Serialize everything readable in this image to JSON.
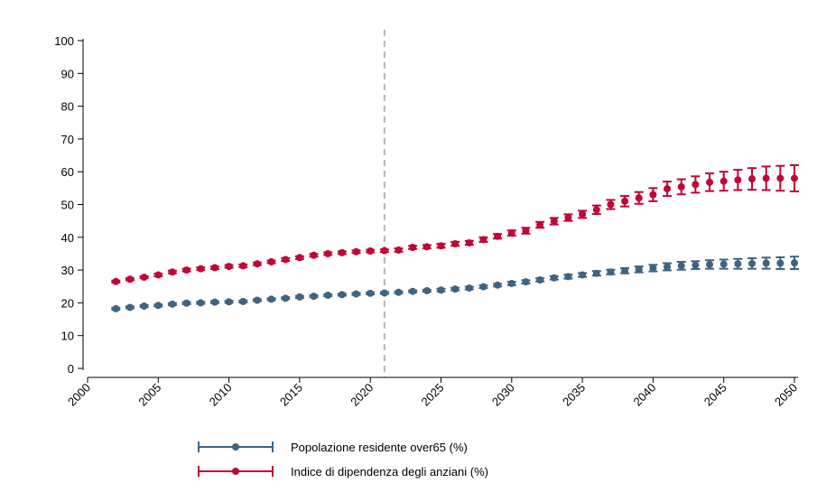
{
  "chart_data": {
    "type": "scatter",
    "x_range": [
      2000,
      2050
    ],
    "ylim": [
      0,
      100
    ],
    "y_ticks": [
      0,
      10,
      20,
      30,
      40,
      50,
      60,
      70,
      80,
      90,
      100
    ],
    "x_ticks": [
      2000,
      2005,
      2010,
      2015,
      2020,
      2025,
      2030,
      2035,
      2040,
      2045,
      2050
    ],
    "vertical_reference_line": 2021,
    "grid": false,
    "legend_position": "bottom",
    "x": [
      2002,
      2003,
      2004,
      2005,
      2006,
      2007,
      2008,
      2009,
      2010,
      2011,
      2012,
      2013,
      2014,
      2015,
      2016,
      2017,
      2018,
      2019,
      2020,
      2021,
      2022,
      2023,
      2024,
      2025,
      2026,
      2027,
      2028,
      2029,
      2030,
      2031,
      2032,
      2033,
      2034,
      2035,
      2036,
      2037,
      2038,
      2039,
      2040,
      2041,
      2042,
      2043,
      2044,
      2045,
      2046,
      2047,
      2048,
      2049,
      2050
    ],
    "series": [
      {
        "name": "Popolazione residente over65 (%)",
        "color": "#3e6383",
        "values": [
          18.2,
          18.6,
          19.0,
          19.2,
          19.6,
          19.9,
          20.0,
          20.2,
          20.3,
          20.4,
          20.8,
          21.1,
          21.4,
          21.8,
          22.0,
          22.3,
          22.5,
          22.7,
          22.9,
          23.0,
          23.2,
          23.5,
          23.7,
          23.9,
          24.2,
          24.5,
          24.9,
          25.4,
          25.9,
          26.4,
          27.0,
          27.6,
          28.0,
          28.5,
          29.0,
          29.4,
          29.8,
          30.2,
          30.6,
          31.0,
          31.3,
          31.5,
          31.7,
          31.8,
          31.9,
          32.0,
          32.1,
          32.1,
          32.2
        ],
        "error": [
          0.3,
          0.3,
          0.3,
          0.3,
          0.3,
          0.3,
          0.3,
          0.3,
          0.3,
          0.3,
          0.3,
          0.3,
          0.3,
          0.3,
          0.3,
          0.3,
          0.3,
          0.3,
          0.3,
          0.3,
          0.3,
          0.3,
          0.3,
          0.4,
          0.4,
          0.4,
          0.4,
          0.4,
          0.5,
          0.5,
          0.5,
          0.5,
          0.6,
          0.6,
          0.7,
          0.7,
          0.8,
          0.9,
          1.0,
          1.1,
          1.2,
          1.2,
          1.3,
          1.4,
          1.5,
          1.6,
          1.7,
          1.8,
          1.9
        ]
      },
      {
        "name": "Indice di dipendenza degli anziani (%)",
        "color": "#c10534",
        "values": [
          26.5,
          27.2,
          27.8,
          28.5,
          29.4,
          30.0,
          30.4,
          30.7,
          31.1,
          31.3,
          31.9,
          32.5,
          33.2,
          33.8,
          34.5,
          35.0,
          35.3,
          35.6,
          35.8,
          35.9,
          36.1,
          36.9,
          37.1,
          37.4,
          38.0,
          38.3,
          39.3,
          40.3,
          41.3,
          42.0,
          43.8,
          44.9,
          46.0,
          47.0,
          48.4,
          50.0,
          51.0,
          52.0,
          53.0,
          54.8,
          55.4,
          56.1,
          56.8,
          57.1,
          57.5,
          57.8,
          58.0,
          58.0,
          58.0
        ],
        "error": [
          0.3,
          0.3,
          0.3,
          0.4,
          0.4,
          0.4,
          0.4,
          0.4,
          0.4,
          0.4,
          0.4,
          0.4,
          0.4,
          0.4,
          0.4,
          0.4,
          0.4,
          0.4,
          0.4,
          0.4,
          0.5,
          0.5,
          0.5,
          0.6,
          0.6,
          0.6,
          0.7,
          0.7,
          0.8,
          0.9,
          0.9,
          1.0,
          1.0,
          1.1,
          1.3,
          1.4,
          1.6,
          1.8,
          2.0,
          2.2,
          2.3,
          2.5,
          2.7,
          2.9,
          3.1,
          3.3,
          3.6,
          3.8,
          4.0
        ]
      }
    ]
  }
}
